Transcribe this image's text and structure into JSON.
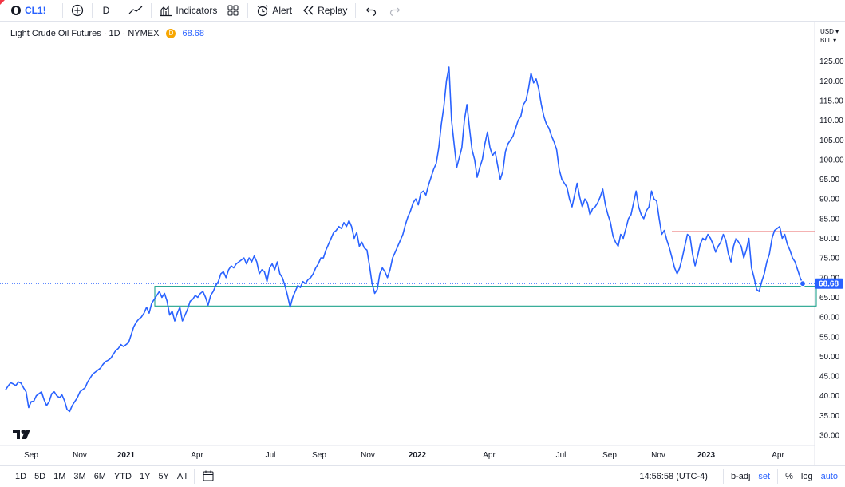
{
  "toolbar": {
    "symbol": "CL1!",
    "interval": "D",
    "indicators_label": "Indicators",
    "alert_label": "Alert",
    "replay_label": "Replay"
  },
  "legend": {
    "title": "Light Crude Oil Futures · 1D · NYMEX",
    "badge": "D",
    "last_price": "68.68"
  },
  "price_scale": {
    "currency": "USD",
    "unit": "BLL",
    "ticks": [
      "125.00",
      "120.00",
      "115.00",
      "110.00",
      "105.00",
      "100.00",
      "95.00",
      "90.00",
      "85.00",
      "80.00",
      "75.00",
      "70.00",
      "65.00",
      "60.00",
      "55.00",
      "50.00",
      "45.00",
      "40.00",
      "35.00",
      "30.00"
    ],
    "last_label": "68.68"
  },
  "time_scale": {
    "labels": [
      "Sep",
      "Nov",
      "2021",
      "Apr",
      "Jul",
      "Sep",
      "Nov",
      "2022",
      "Apr",
      "Jul",
      "Sep",
      "Nov",
      "2023",
      "Apr"
    ]
  },
  "bottom": {
    "ranges": [
      "1D",
      "5D",
      "1M",
      "3M",
      "6M",
      "YTD",
      "1Y",
      "5Y",
      "All"
    ],
    "clock": "14:56:58 (UTC-4)",
    "badj": "b-adj",
    "set": "set",
    "percent": "%",
    "log": "log",
    "auto": "auto"
  },
  "colors": {
    "line": "#2962ff",
    "support_box": "#089981",
    "resistance": "#e03131",
    "accent": "#2962ff"
  },
  "chart_data": {
    "type": "line",
    "ylim": [
      27,
      128
    ],
    "series": [
      {
        "values": [
          41.5,
          42.5,
          43.3,
          43,
          42.6,
          43.5,
          43.2,
          42,
          41,
          37,
          38.5,
          38.6,
          40,
          40.5,
          41,
          39,
          37.5,
          38.5,
          40.5,
          41,
          40,
          39.5,
          40.2,
          38.7,
          36.5,
          36,
          37.5,
          38.5,
          39.5,
          41,
          41.5,
          42,
          43.5,
          44.5,
          45.5,
          46,
          46.5,
          47,
          48,
          48.7,
          49,
          49.5,
          50.5,
          51.5,
          52,
          53,
          52.5,
          53,
          53.5,
          55.5,
          57.5,
          58.7,
          59.5,
          60,
          61,
          62.5,
          61,
          63.5,
          64.5,
          65.5,
          66.5,
          65,
          66,
          64,
          60.5,
          61.5,
          59,
          61,
          62.5,
          59,
          60.5,
          62,
          64,
          64.5,
          65.5,
          65,
          66,
          66.5,
          65,
          63,
          65.5,
          66.5,
          68,
          69,
          71,
          71.5,
          70,
          72,
          73,
          72.5,
          73.5,
          74,
          74.5,
          75,
          73.5,
          75,
          74,
          75.5,
          74,
          71,
          72,
          71.5,
          69,
          72.5,
          73.5,
          72,
          74,
          71,
          70,
          68,
          65.5,
          62.5,
          65,
          66.5,
          68,
          67.5,
          69,
          68.5,
          69.5,
          70,
          71,
          72.5,
          73.5,
          75,
          75,
          77,
          78.5,
          80,
          81.5,
          82,
          83,
          82.5,
          84,
          83,
          84.5,
          83,
          80,
          81.5,
          78,
          79,
          77.5,
          77,
          73,
          68.5,
          66,
          67,
          71,
          72.5,
          71.5,
          70,
          72,
          75,
          76.5,
          78,
          79.5,
          81,
          83.5,
          85.5,
          87,
          89,
          90,
          88.5,
          91.5,
          92,
          91,
          93.5,
          95.5,
          97.5,
          99,
          103,
          109,
          113.5,
          120,
          123.5,
          110,
          104,
          98,
          100.5,
          103,
          110,
          114,
          108,
          102.5,
          100,
          95.5,
          98,
          100,
          104,
          107,
          103,
          101,
          102,
          98.5,
          95,
          97,
          102,
          104,
          105,
          106,
          108,
          110,
          111,
          114,
          115,
          118,
          122,
          119.5,
          120.5,
          118,
          114,
          111,
          109,
          108,
          106,
          104.5,
          102.5,
          97.5,
          95,
          94,
          93,
          90,
          88,
          91,
          94,
          90.5,
          88,
          90,
          89,
          86,
          87.5,
          88,
          89,
          90.5,
          92.5,
          88.5,
          86,
          84,
          80.5,
          79,
          78,
          81,
          80,
          82.5,
          85,
          86,
          89,
          92,
          88,
          86,
          85,
          87,
          88,
          92,
          90,
          89.5,
          85,
          81,
          82,
          79.5,
          77.5,
          75,
          72.5,
          71,
          72.5,
          75,
          78,
          81,
          80.5,
          76,
          73,
          75.5,
          78.5,
          80,
          79.5,
          81,
          80,
          78.5,
          76.5,
          78,
          79,
          81,
          79.5,
          76,
          74,
          78,
          80,
          79,
          78,
          75,
          77,
          80,
          72.5,
          70,
          67,
          66.5,
          69,
          71,
          74,
          76,
          80,
          82,
          82.5,
          83,
          80,
          81,
          78.5,
          77,
          75,
          74,
          72,
          70,
          68.5
        ]
      }
    ],
    "support_zone": [
      62.8,
      67.8
    ],
    "resistance_level": 81.7
  }
}
